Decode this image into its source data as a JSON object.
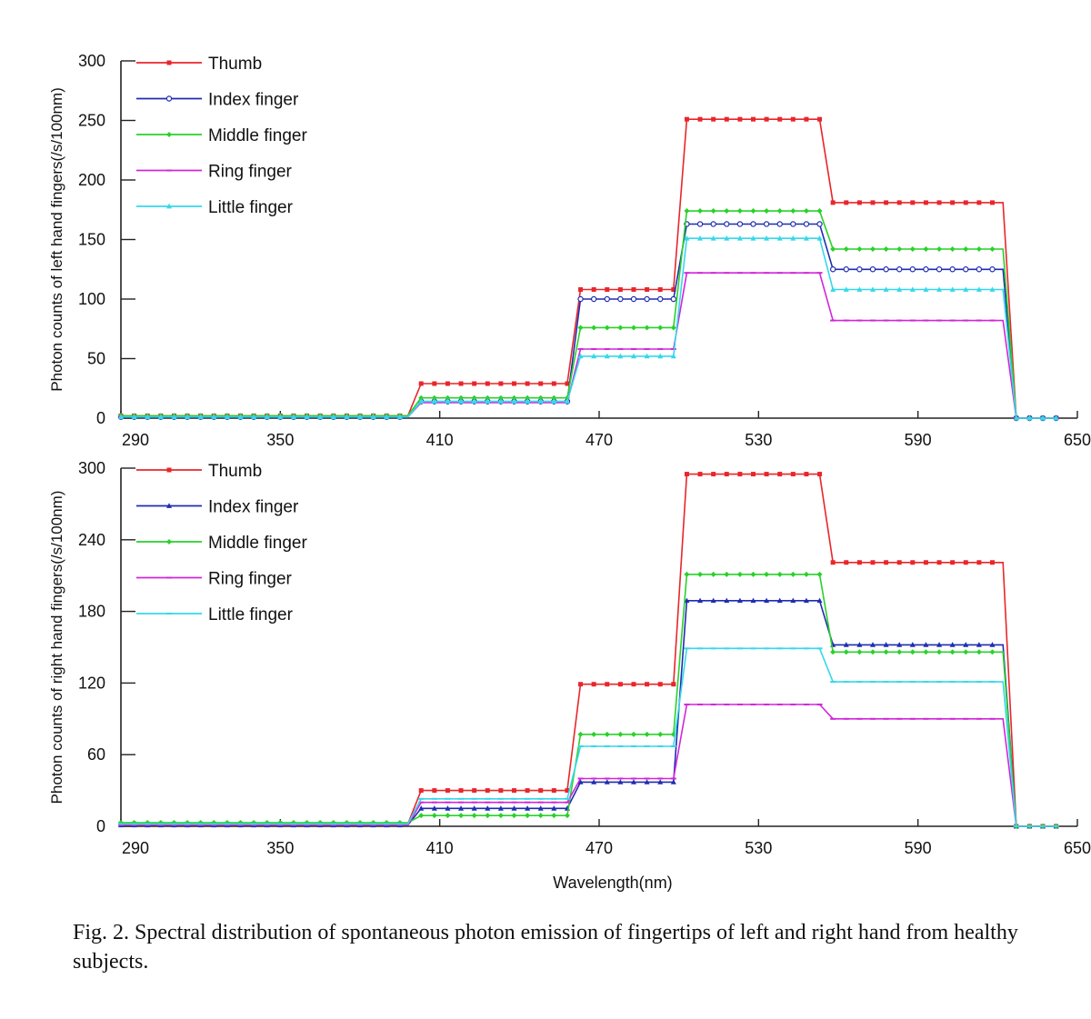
{
  "caption": "Fig. 2. Spectral distribution of spontaneous photon emission of fingertips of left and right hand from healthy subjects.",
  "colors": {
    "Thumb": "#e8262b",
    "Index finger": "#1f2db0",
    "Middle finger": "#2ad12a",
    "Ring finger": "#d126d9",
    "Little finger": "#35d8ea"
  },
  "chart_data": [
    {
      "type": "line",
      "ylabel": "Photon counts of left hand fingers(/s/100nm)",
      "xlabel": "",
      "x_ticks": [
        290,
        350,
        410,
        470,
        530,
        590,
        650
      ],
      "y_ticks": [
        0,
        50,
        100,
        150,
        200,
        250,
        300
      ],
      "xlim": [
        290,
        650
      ],
      "ylim": [
        0,
        300
      ],
      "legend": "top-left",
      "grid": false,
      "bands": [
        [
          290,
          398
        ],
        [
          403,
          458
        ],
        [
          463,
          498
        ],
        [
          503,
          553
        ],
        [
          558,
          622
        ],
        [
          627,
          642
        ]
      ],
      "series": [
        {
          "name": "Thumb",
          "marker": "square",
          "values": [
            2,
            29,
            108,
            251,
            181,
            0
          ]
        },
        {
          "name": "Index finger",
          "marker": "circle",
          "values": [
            1,
            14,
            100,
            163,
            125,
            0
          ]
        },
        {
          "name": "Middle finger",
          "marker": "diamond",
          "values": [
            2,
            17,
            76,
            174,
            142,
            0
          ]
        },
        {
          "name": "Ring finger",
          "marker": "dash",
          "values": [
            1,
            13,
            58,
            122,
            82,
            0
          ]
        },
        {
          "name": "Little finger",
          "marker": "triangle",
          "values": [
            1,
            14,
            52,
            151,
            108,
            0
          ]
        }
      ]
    },
    {
      "type": "line",
      "ylabel": "Photon counts of right hand fingers(/s/100nm)",
      "xlabel": "Wavelength(nm)",
      "x_ticks": [
        290,
        350,
        410,
        470,
        530,
        590,
        650
      ],
      "y_ticks": [
        0,
        60,
        120,
        180,
        240,
        300
      ],
      "xlim": [
        290,
        650
      ],
      "ylim": [
        0,
        300
      ],
      "legend": "top-left",
      "grid": false,
      "bands": [
        [
          290,
          398
        ],
        [
          403,
          458
        ],
        [
          463,
          498
        ],
        [
          503,
          553
        ],
        [
          558,
          622
        ],
        [
          627,
          642
        ]
      ],
      "series": [
        {
          "name": "Thumb",
          "marker": "square",
          "values": [
            2,
            30,
            119,
            295,
            221,
            0
          ]
        },
        {
          "name": "Index finger",
          "marker": "triangle",
          "values": [
            1,
            15,
            37,
            189,
            152,
            0
          ]
        },
        {
          "name": "Middle finger",
          "marker": "diamond",
          "values": [
            3,
            9,
            77,
            211,
            146,
            0
          ]
        },
        {
          "name": "Ring finger",
          "marker": "dash",
          "values": [
            1,
            20,
            40,
            102,
            90,
            0
          ]
        },
        {
          "name": "Little finger",
          "marker": "dash",
          "values": [
            2,
            23,
            67,
            149,
            121,
            0
          ]
        }
      ]
    }
  ]
}
